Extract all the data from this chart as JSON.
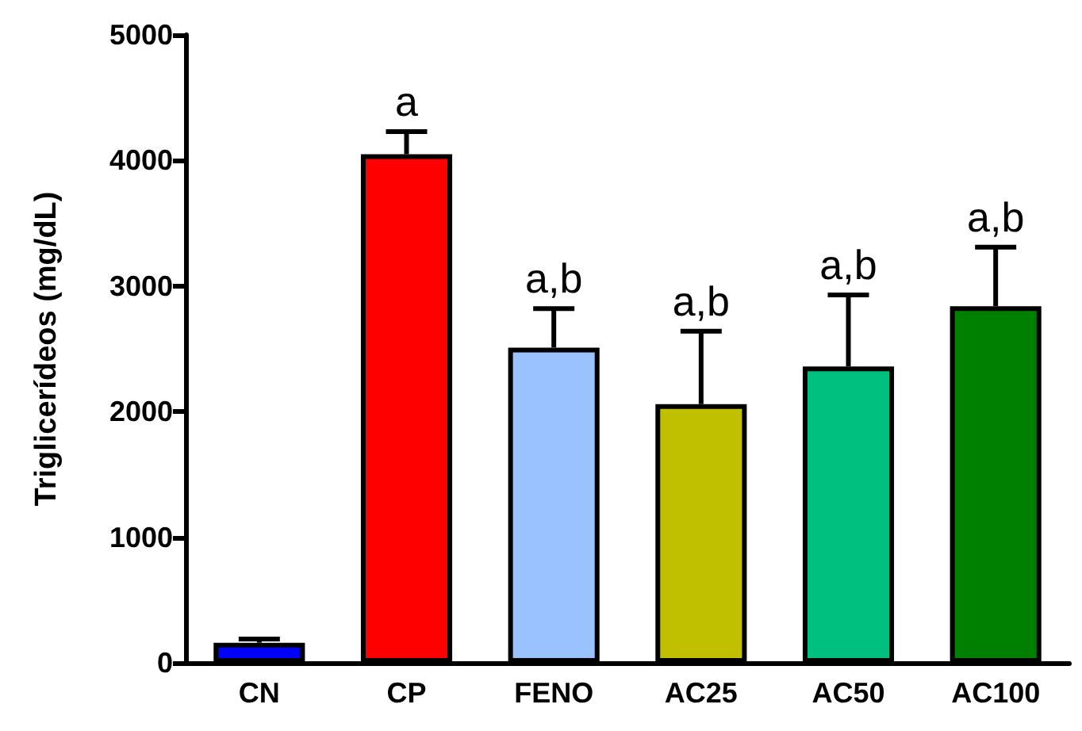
{
  "chart_data": {
    "type": "bar",
    "ylabel": "Triglicerídeos (mg/dL)",
    "categories": [
      "CN",
      "CP",
      "FENO",
      "AC25",
      "AC50",
      "AC100"
    ],
    "values": [
      160,
      4050,
      2510,
      2060,
      2360,
      2840
    ],
    "errors": [
      30,
      180,
      310,
      580,
      570,
      470
    ],
    "colors": [
      "#0000ff",
      "#ff0000",
      "#99c2ff",
      "#c0c000",
      "#00c080",
      "#008000"
    ],
    "ylim": [
      0,
      5000
    ],
    "yticks": [
      0,
      1000,
      2000,
      3000,
      4000,
      5000
    ],
    "grid": false,
    "annotations": [
      {
        "text": "a",
        "x": "CP",
        "y": 4230
      },
      {
        "text": "a,b",
        "x": "FENO",
        "y": 2820
      },
      {
        "text": "a,b",
        "x": "AC25",
        "y": 2640
      },
      {
        "text": "a,b",
        "x": "AC50",
        "y": 2930
      },
      {
        "text": "a,b",
        "x": "AC100",
        "y": 3310
      }
    ]
  }
}
